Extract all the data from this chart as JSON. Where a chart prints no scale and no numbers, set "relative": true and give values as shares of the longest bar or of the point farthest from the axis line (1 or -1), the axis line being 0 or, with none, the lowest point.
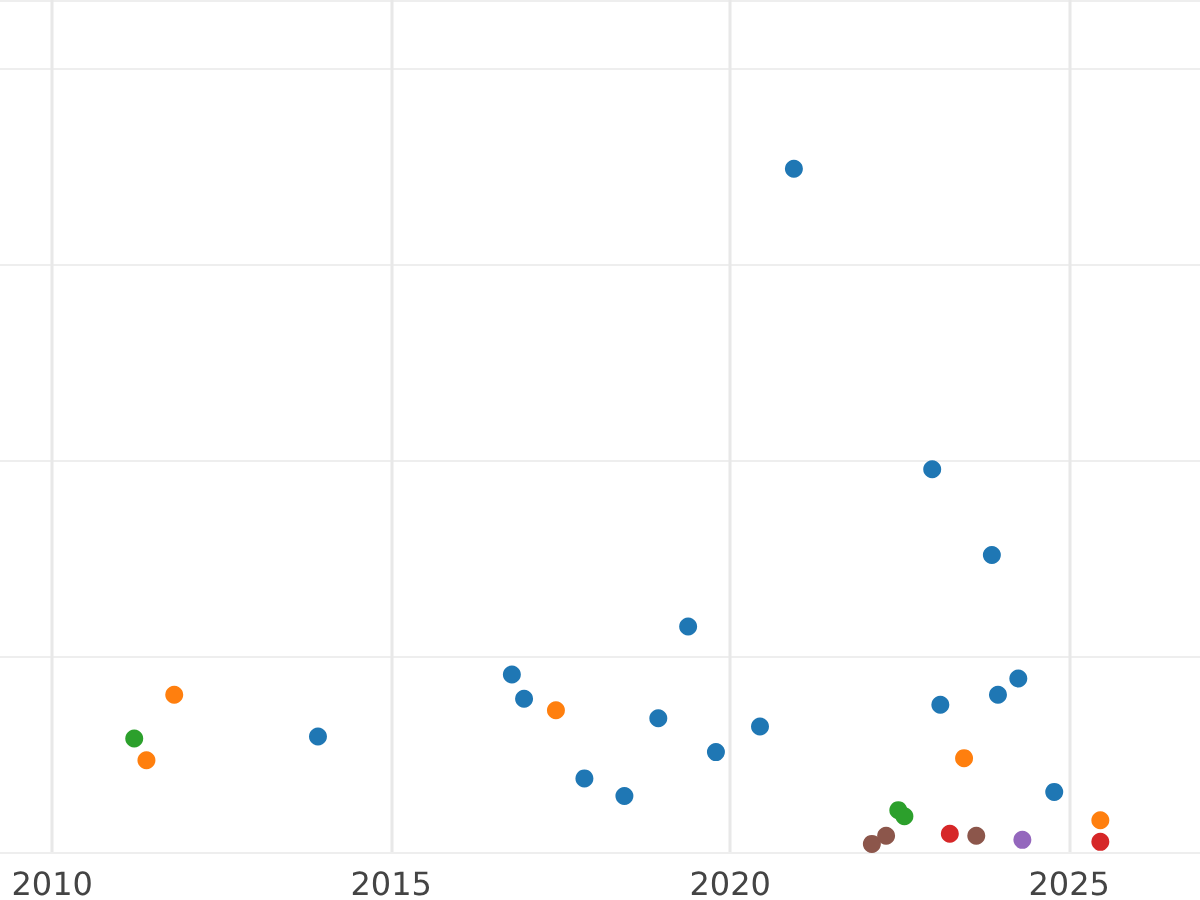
{
  "chart_data": {
    "type": "scatter",
    "relative": true,
    "marker": "circle",
    "grid": true,
    "xlim": [
      2009.23,
      2026.93
    ],
    "xticks": [
      2010,
      2015,
      2020,
      2025
    ],
    "series": [
      {
        "color": "#1f77b4",
        "x": [
          2013.92,
          2016.78,
          2016.96,
          2017.85,
          2018.44,
          2018.94,
          2019.38,
          2019.79,
          2020.44,
          2020.94,
          2022.98,
          2023.1,
          2023.86,
          2023.95,
          2024.25,
          2024.78
        ],
        "values": [
          0.159,
          0.251,
          0.215,
          0.097,
          0.071,
          0.186,
          0.322,
          0.136,
          0.174,
          1,
          0.555,
          0.206,
          0.428,
          0.221,
          0.245,
          0.077
        ]
      },
      {
        "color": "#ff7f0e",
        "x": [
          2011.39,
          2011.8,
          2017.43,
          2023.45,
          2025.46
        ],
        "values": [
          0.124,
          0.221,
          0.198,
          0.127,
          0.035
        ]
      },
      {
        "color": "#2ca02c",
        "x": [
          2011.21,
          2022.48,
          2022.57
        ],
        "values": [
          0.156,
          0.05,
          0.041
        ]
      },
      {
        "color": "#d62728",
        "x": [
          2023.24,
          2025.46
        ],
        "values": [
          0.015,
          0.003
        ]
      },
      {
        "color": "#8c564b",
        "x": [
          2022.09,
          2022.3,
          2023.63
        ],
        "values": [
          0,
          0.012,
          0.012
        ]
      },
      {
        "color": "#9467bd",
        "x": [
          2024.31
        ],
        "values": [
          0.006
        ]
      }
    ]
  }
}
